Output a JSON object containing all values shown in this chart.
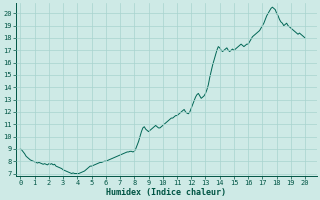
{
  "xlabel": "Humidex (Indice chaleur)",
  "xlim": [
    -0.3,
    20.8
  ],
  "ylim": [
    6.8,
    20.8
  ],
  "yticks": [
    7,
    8,
    9,
    10,
    11,
    12,
    13,
    14,
    15,
    16,
    17,
    18,
    19,
    20
  ],
  "xticks": [
    0,
    1,
    2,
    3,
    4,
    5,
    6,
    7,
    8,
    9,
    10,
    11,
    12,
    13,
    14,
    15,
    16,
    17,
    18,
    19,
    20
  ],
  "bg_color": "#ceeae6",
  "grid_color": "#a8d4ce",
  "line_color": "#006655",
  "tick_color": "#005544",
  "x": [
    0.0,
    0.1,
    0.2,
    0.3,
    0.4,
    0.5,
    0.6,
    0.7,
    0.8,
    0.9,
    1.0,
    1.1,
    1.2,
    1.3,
    1.4,
    1.5,
    1.6,
    1.7,
    1.8,
    1.9,
    2.0,
    2.1,
    2.2,
    2.3,
    2.4,
    2.5,
    2.6,
    2.7,
    2.8,
    2.9,
    3.0,
    3.1,
    3.2,
    3.3,
    3.4,
    3.5,
    3.6,
    3.7,
    3.8,
    3.9,
    4.0,
    4.1,
    4.2,
    4.3,
    4.4,
    4.5,
    4.6,
    4.7,
    4.8,
    4.9,
    5.0,
    5.1,
    5.2,
    5.3,
    5.4,
    5.5,
    5.6,
    5.7,
    5.8,
    5.9,
    6.0,
    6.1,
    6.2,
    6.3,
    6.4,
    6.5,
    6.6,
    6.7,
    6.8,
    6.9,
    7.0,
    7.1,
    7.2,
    7.3,
    7.4,
    7.5,
    7.6,
    7.7,
    7.8,
    7.9,
    8.0,
    8.1,
    8.2,
    8.3,
    8.4,
    8.5,
    8.6,
    8.7,
    8.8,
    8.9,
    9.0,
    9.1,
    9.2,
    9.3,
    9.4,
    9.5,
    9.6,
    9.7,
    9.8,
    9.9,
    10.0,
    10.1,
    10.2,
    10.3,
    10.4,
    10.5,
    10.6,
    10.7,
    10.8,
    10.9,
    11.0,
    11.1,
    11.2,
    11.3,
    11.4,
    11.5,
    11.6,
    11.7,
    11.8,
    11.9,
    12.0,
    12.1,
    12.2,
    12.3,
    12.4,
    12.5,
    12.6,
    12.7,
    12.8,
    12.9,
    13.0,
    13.1,
    13.2,
    13.3,
    13.4,
    13.5,
    13.6,
    13.7,
    13.8,
    13.9,
    14.0,
    14.1,
    14.2,
    14.3,
    14.4,
    14.5,
    14.6,
    14.7,
    14.8,
    14.9,
    15.0,
    15.1,
    15.2,
    15.3,
    15.4,
    15.5,
    15.6,
    15.7,
    15.8,
    15.9,
    16.0,
    16.1,
    16.2,
    16.3,
    16.4,
    16.5,
    16.6,
    16.7,
    16.8,
    16.9,
    17.0,
    17.1,
    17.2,
    17.3,
    17.4,
    17.5,
    17.6,
    17.7,
    17.8,
    17.9,
    18.0,
    18.1,
    18.2,
    18.3,
    18.4,
    18.5,
    18.6,
    18.7,
    18.8,
    18.9,
    19.0,
    19.1,
    19.2,
    19.3,
    19.4,
    19.5,
    19.6,
    19.7,
    19.8,
    19.9,
    20.0
  ],
  "y": [
    9.0,
    8.9,
    8.75,
    8.6,
    8.4,
    8.3,
    8.2,
    8.1,
    8.05,
    8.0,
    7.95,
    7.9,
    7.85,
    7.9,
    7.85,
    7.8,
    7.75,
    7.8,
    7.75,
    7.7,
    7.8,
    7.75,
    7.8,
    7.7,
    7.75,
    7.6,
    7.55,
    7.5,
    7.45,
    7.4,
    7.3,
    7.25,
    7.2,
    7.15,
    7.1,
    7.05,
    7.0,
    7.05,
    7.0,
    7.0,
    7.0,
    7.0,
    7.05,
    7.1,
    7.15,
    7.2,
    7.3,
    7.4,
    7.5,
    7.6,
    7.6,
    7.65,
    7.7,
    7.75,
    7.8,
    7.85,
    7.9,
    7.9,
    7.95,
    8.0,
    8.0,
    8.05,
    8.1,
    8.15,
    8.2,
    8.25,
    8.3,
    8.35,
    8.4,
    8.45,
    8.5,
    8.55,
    8.6,
    8.65,
    8.7,
    8.75,
    8.75,
    8.8,
    8.8,
    8.75,
    8.8,
    9.0,
    9.3,
    9.6,
    10.0,
    10.4,
    10.7,
    10.8,
    10.6,
    10.5,
    10.4,
    10.5,
    10.6,
    10.7,
    10.8,
    10.9,
    10.8,
    10.7,
    10.7,
    10.8,
    10.9,
    11.0,
    11.1,
    11.2,
    11.3,
    11.4,
    11.5,
    11.5,
    11.6,
    11.7,
    11.7,
    11.8,
    11.9,
    12.0,
    12.1,
    12.2,
    12.0,
    11.9,
    11.85,
    12.0,
    12.3,
    12.6,
    12.9,
    13.2,
    13.4,
    13.5,
    13.3,
    13.1,
    13.2,
    13.3,
    13.5,
    13.8,
    14.2,
    14.8,
    15.3,
    15.8,
    16.2,
    16.6,
    17.0,
    17.3,
    17.2,
    17.0,
    16.9,
    17.0,
    17.1,
    17.2,
    17.0,
    16.9,
    17.0,
    17.1,
    17.0,
    17.1,
    17.2,
    17.3,
    17.4,
    17.5,
    17.4,
    17.3,
    17.4,
    17.5,
    17.5,
    17.7,
    17.9,
    18.1,
    18.2,
    18.3,
    18.4,
    18.5,
    18.6,
    18.8,
    19.0,
    19.2,
    19.5,
    19.8,
    20.0,
    20.2,
    20.4,
    20.5,
    20.4,
    20.3,
    20.0,
    19.8,
    19.5,
    19.3,
    19.2,
    19.0,
    19.1,
    19.2,
    19.0,
    18.9,
    18.8,
    18.7,
    18.6,
    18.5,
    18.4,
    18.3,
    18.4,
    18.3,
    18.2,
    18.1,
    18.0
  ]
}
